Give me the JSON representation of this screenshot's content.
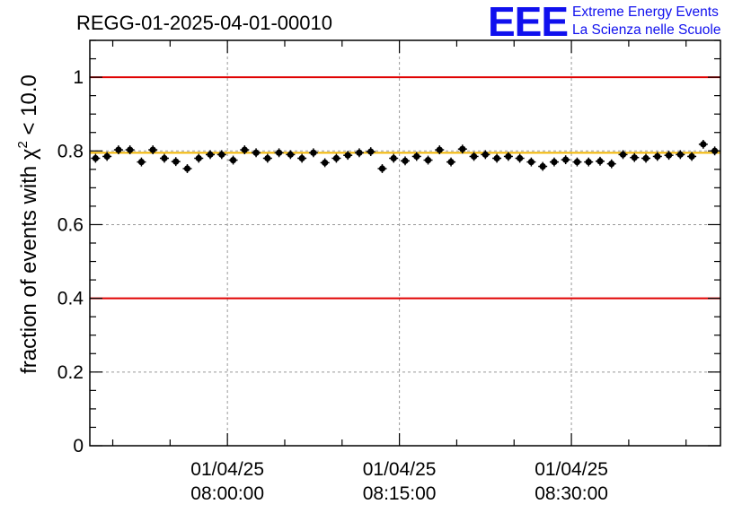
{
  "header": {
    "title": "REGG-01-2025-04-01-00010",
    "logo_text": "EEE",
    "logo_line1": "Extreme Energy Events",
    "logo_line2": "La Scienza nelle Scuole"
  },
  "colors": {
    "reference_lines": "#e00000",
    "mean_line": "#f0b400",
    "points": "#000000",
    "logo": "#1010ee",
    "grid": "#999999"
  },
  "chart_data": {
    "type": "scatter",
    "title": "REGG-01-2025-04-01-00010",
    "ylabel_prefix": "fraction of events with χ",
    "ylabel_sup": "2",
    "ylabel_suffix": " < 10.0",
    "xlabel": "",
    "ylim": [
      0,
      1.1
    ],
    "xlim": [
      "2025-04-01 07:48:00",
      "2025-04-01 08:43:00"
    ],
    "yticks": [
      "0",
      "0.2",
      "0.4",
      "0.6",
      "0.8",
      "1"
    ],
    "ytick_values": [
      0,
      0.2,
      0.4,
      0.6,
      0.8,
      1
    ],
    "xticks": [
      {
        "t": "2025-04-01 08:00:00",
        "line1": "01/04/25",
        "line2": "08:00:00"
      },
      {
        "t": "2025-04-01 08:15:00",
        "line1": "01/04/25",
        "line2": "08:15:00"
      },
      {
        "t": "2025-04-01 08:30:00",
        "line1": "01/04/25",
        "line2": "08:30:00"
      }
    ],
    "grid": true,
    "reference_lines": [
      1.0,
      0.4
    ],
    "mean_line": 0.795,
    "x_error": 0.008,
    "y_error": 0.012,
    "x_start": "2025-04-01 07:48:30",
    "x_step_seconds": 60,
    "values": [
      0.78,
      0.785,
      0.803,
      0.803,
      0.77,
      0.803,
      0.78,
      0.771,
      0.752,
      0.78,
      0.79,
      0.79,
      0.775,
      0.803,
      0.795,
      0.78,
      0.795,
      0.79,
      0.78,
      0.795,
      0.768,
      0.78,
      0.788,
      0.795,
      0.798,
      0.752,
      0.78,
      0.773,
      0.785,
      0.775,
      0.803,
      0.77,
      0.805,
      0.785,
      0.79,
      0.78,
      0.785,
      0.78,
      0.77,
      0.758,
      0.77,
      0.776,
      0.77,
      0.77,
      0.772,
      0.765,
      0.79,
      0.782,
      0.78,
      0.785,
      0.788,
      0.79,
      0.785,
      0.818,
      0.8
    ]
  }
}
